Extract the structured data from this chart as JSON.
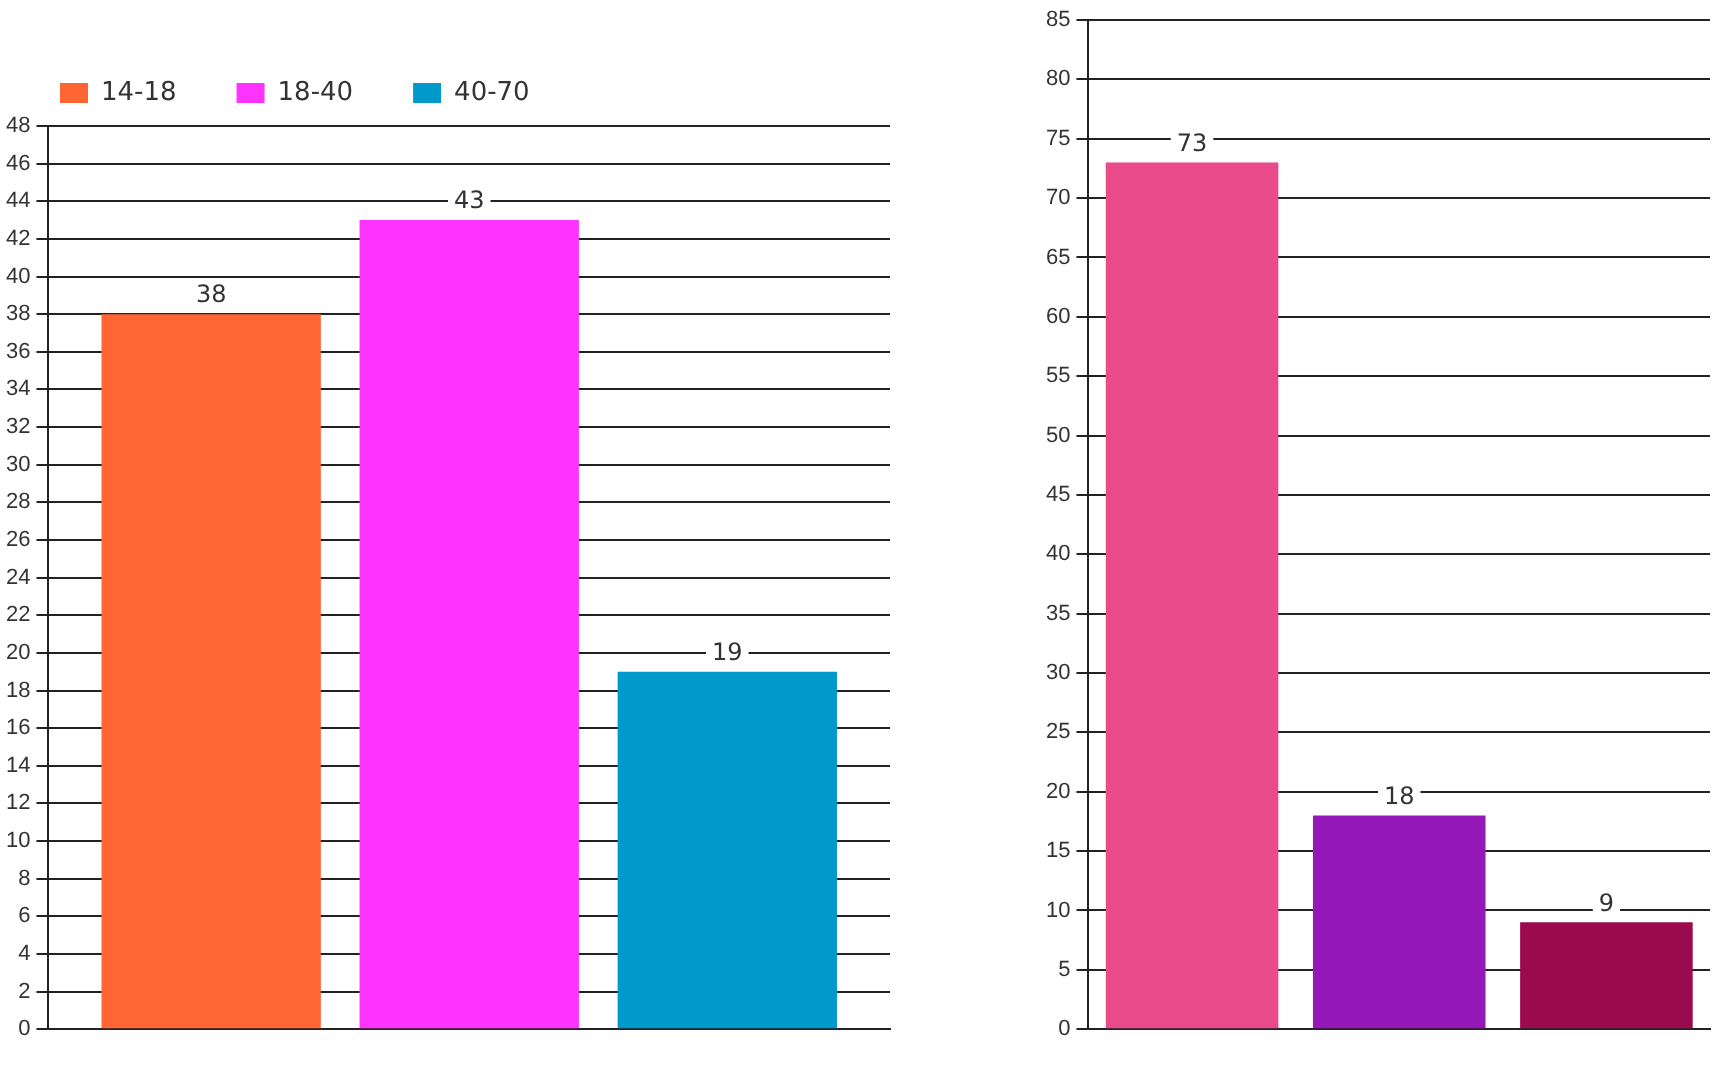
{
  "chart_data": [
    {
      "type": "bar",
      "categories": [
        null
      ],
      "series": [
        {
          "name": "14-18",
          "color": "#ff6633",
          "values": [
            38
          ]
        },
        {
          "name": "18-40",
          "color": "#ff33ff",
          "values": [
            43
          ]
        },
        {
          "name": "40-70",
          "color": "#0099cc",
          "values": [
            19
          ]
        }
      ],
      "ylim": [
        0,
        48
      ],
      "yticks": [
        0,
        2,
        4,
        6,
        8,
        10,
        12,
        14,
        16,
        18,
        20,
        22,
        24,
        26,
        28,
        30,
        32,
        34,
        36,
        38,
        40,
        42,
        44,
        46,
        48
      ],
      "grid": "y",
      "legend": "top left",
      "data_labels": true
    },
    {
      "type": "bar",
      "categories": [
        null,
        null,
        null
      ],
      "values": [
        73,
        18,
        9
      ],
      "colors": [
        "#e84a8a",
        "#9418b8",
        "#9c0a4e"
      ],
      "ylim": [
        0,
        85
      ],
      "yticks": [
        0,
        5,
        10,
        15,
        20,
        25,
        30,
        35,
        40,
        45,
        50,
        55,
        60,
        65,
        70,
        75,
        80,
        85
      ],
      "grid": "y",
      "data_labels": true
    }
  ]
}
